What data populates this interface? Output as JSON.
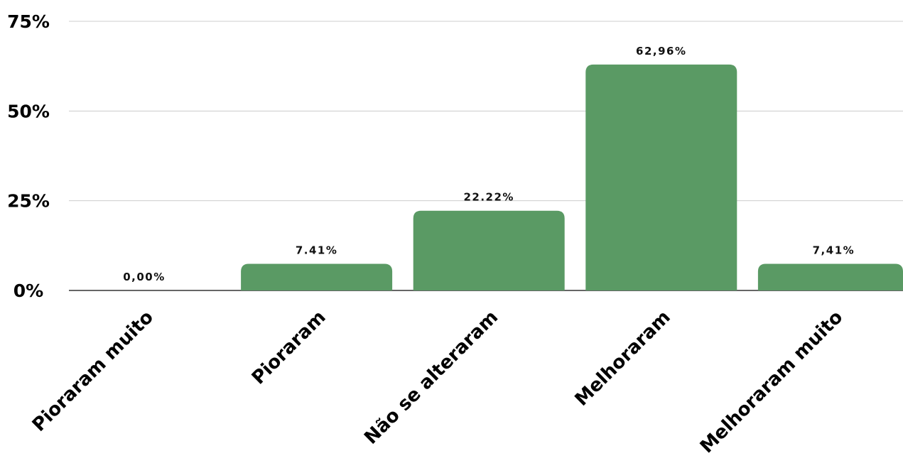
{
  "chart_data": {
    "type": "bar",
    "categories": [
      "Pioraram muito",
      "Pioraram",
      "Não se alteraram",
      "Melhoraram",
      "Melhoraram muito"
    ],
    "values": [
      0.0,
      7.41,
      22.22,
      62.96,
      7.41
    ],
    "data_labels": [
      "0,00%",
      "7.41%",
      "22.22%",
      "62,96%",
      "7,41%"
    ],
    "y_ticks": [
      {
        "value": 0,
        "label": "0%"
      },
      {
        "value": 25,
        "label": "25%"
      },
      {
        "value": 50,
        "label": "50%"
      },
      {
        "value": 75,
        "label": "75%"
      }
    ],
    "ylim": [
      0,
      75
    ],
    "title": "",
    "xlabel": "",
    "ylabel": "",
    "grid": true,
    "bar_color": "#5a9a64",
    "legend": "none"
  }
}
